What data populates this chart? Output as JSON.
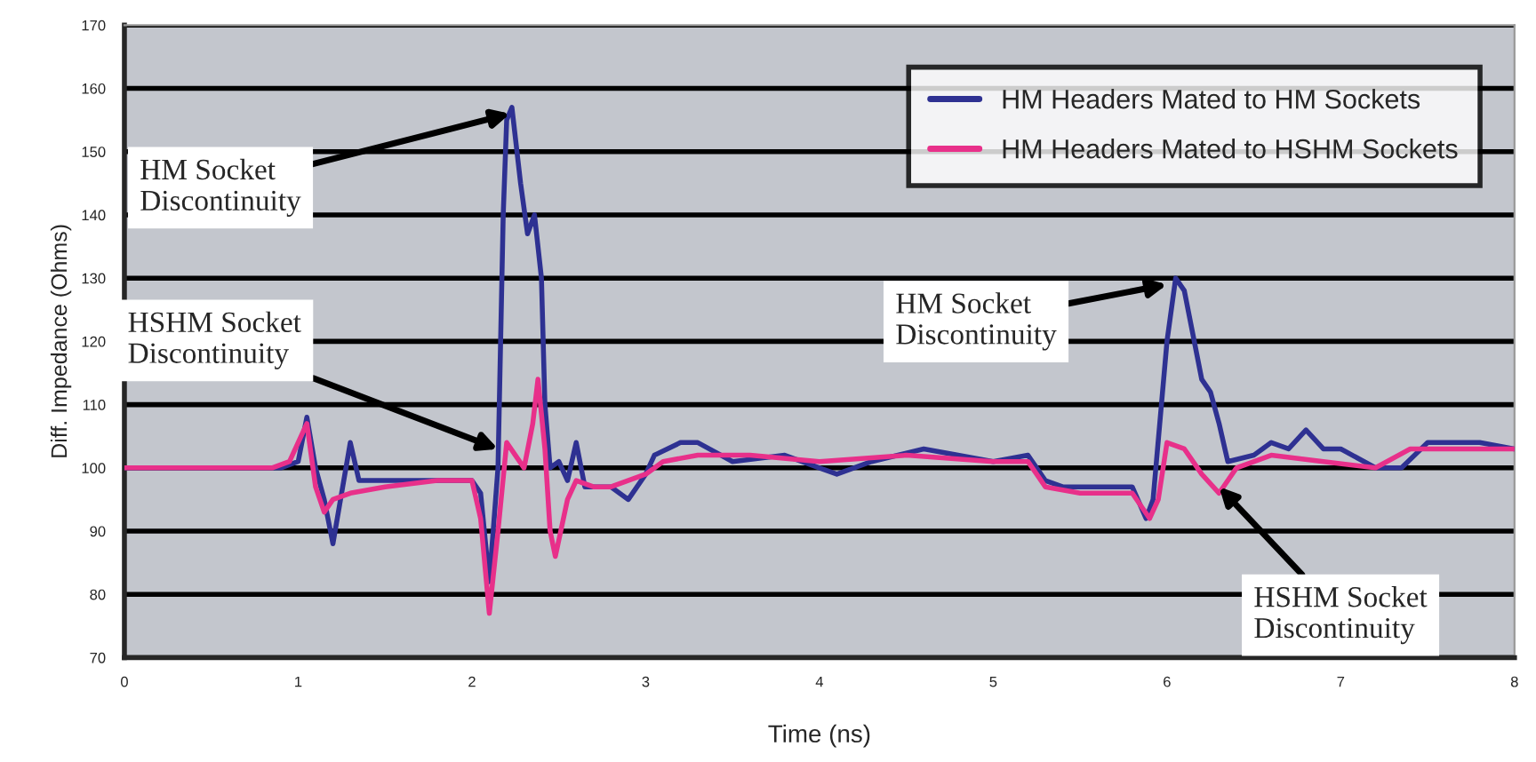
{
  "chart_data": {
    "type": "line",
    "xlabel": "Time (ns)",
    "ylabel": "Diff. Impedance (Ohms)",
    "xlim": [
      0,
      8
    ],
    "xticks": [
      0,
      1,
      2,
      3,
      4,
      5,
      6,
      7,
      8
    ],
    "ylim": [
      70,
      170
    ],
    "yticks": [
      70,
      80,
      90,
      100,
      110,
      120,
      130,
      140,
      150,
      160,
      170
    ],
    "grid": "y",
    "legend": "top right",
    "line_style": "solid",
    "marker": "none",
    "series": [
      {
        "name": "HM Headers Mated to HM Sockets",
        "color": "#2e3192",
        "x": [
          0,
          0.9,
          1.0,
          1.05,
          1.1,
          1.15,
          1.2,
          1.25,
          1.3,
          1.35,
          1.5,
          1.8,
          2.0,
          2.05,
          2.1,
          2.15,
          2.18,
          2.2,
          2.23,
          2.28,
          2.32,
          2.36,
          2.4,
          2.42,
          2.45,
          2.5,
          2.55,
          2.6,
          2.65,
          2.8,
          2.9,
          3.0,
          3.05,
          3.2,
          3.3,
          3.5,
          3.8,
          4.0,
          4.1,
          4.3,
          4.6,
          5.0,
          5.2,
          5.3,
          5.4,
          5.8,
          5.88,
          5.92,
          6.0,
          6.05,
          6.1,
          6.2,
          6.25,
          6.3,
          6.35,
          6.5,
          6.6,
          6.7,
          6.8,
          6.9,
          7.0,
          7.2,
          7.35,
          7.5,
          7.8,
          8.0
        ],
        "values": [
          100,
          100,
          101,
          108,
          100,
          95,
          88,
          96,
          104,
          98,
          98,
          98,
          98,
          96,
          82,
          100,
          140,
          155,
          157,
          145,
          137,
          140,
          130,
          110,
          100,
          101,
          98,
          104,
          97,
          97,
          95,
          99,
          102,
          104,
          104,
          101,
          102,
          100,
          99,
          101,
          103,
          101,
          102,
          98,
          97,
          97,
          92,
          95,
          120,
          130,
          128,
          114,
          112,
          107,
          101,
          102,
          104,
          103,
          106,
          103,
          103,
          100,
          100,
          104,
          104,
          103
        ]
      },
      {
        "name": "HM Headers Mated to HSHM Sockets",
        "color": "#e8308a",
        "x": [
          0,
          0.85,
          0.95,
          1.05,
          1.1,
          1.15,
          1.2,
          1.3,
          1.5,
          1.8,
          2.0,
          2.05,
          2.1,
          2.15,
          2.2,
          2.25,
          2.3,
          2.35,
          2.38,
          2.42,
          2.45,
          2.48,
          2.55,
          2.6,
          2.7,
          2.8,
          3.0,
          3.1,
          3.3,
          3.6,
          4.0,
          4.5,
          5.0,
          5.2,
          5.3,
          5.5,
          5.8,
          5.9,
          5.95,
          6.0,
          6.1,
          6.2,
          6.3,
          6.4,
          6.6,
          6.9,
          7.2,
          7.4,
          7.7,
          8.0
        ],
        "values": [
          100,
          100,
          101,
          107,
          97,
          93,
          95,
          96,
          97,
          98,
          98,
          92,
          77,
          90,
          104,
          102,
          100,
          107,
          114,
          103,
          90,
          86,
          95,
          98,
          97,
          97,
          99,
          101,
          102,
          102,
          101,
          102,
          101,
          101,
          97,
          96,
          96,
          92,
          95,
          104,
          103,
          99,
          96,
          100,
          102,
          101,
          100,
          103,
          103,
          103
        ]
      }
    ],
    "annotations": [
      {
        "text": "HM Socket\nDiscontinuity",
        "x": 2.22,
        "y": 156
      },
      {
        "text": "HSHM Socket\nDiscontinuity",
        "x": 2.15,
        "y": 103
      },
      {
        "text": "HM Socket\nDiscontinuity",
        "x": 6.0,
        "y": 129
      },
      {
        "text": "HSHM Socket\nDiscontinuity",
        "x": 6.3,
        "y": 97
      }
    ]
  }
}
